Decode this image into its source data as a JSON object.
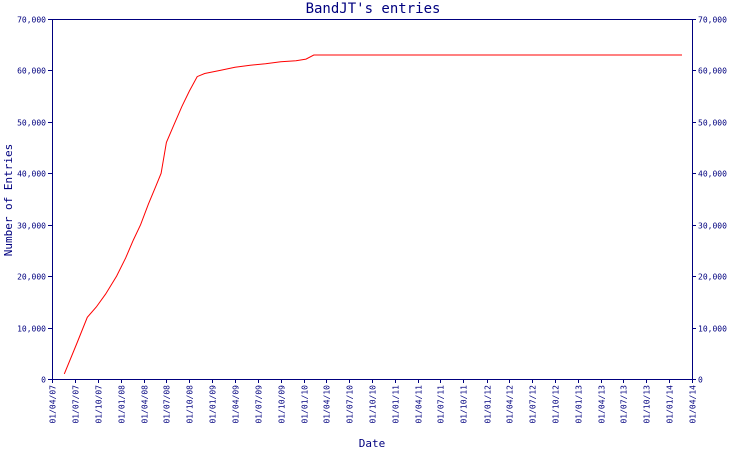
{
  "chart_data": {
    "type": "line",
    "title": "BandJT's entries",
    "xlabel": "Date",
    "ylabel": "Number of Entries",
    "ylim": [
      0,
      70000
    ],
    "grid": false,
    "legend": "none",
    "x_start": "2007-04-01",
    "x_end": "2014-04-01",
    "y_ticks": [
      {
        "value": 0,
        "label": "0"
      },
      {
        "value": 10000,
        "label": "10,000"
      },
      {
        "value": 20000,
        "label": "20,000"
      },
      {
        "value": 30000,
        "label": "30,000"
      },
      {
        "value": 40000,
        "label": "40,000"
      },
      {
        "value": 50000,
        "label": "50,000"
      },
      {
        "value": 60000,
        "label": "60,000"
      },
      {
        "value": 70000,
        "label": "70,000"
      }
    ],
    "x_ticks": [
      {
        "date": "2007-04-01",
        "label": "01/04/07"
      },
      {
        "date": "2007-07-01",
        "label": "01/07/07"
      },
      {
        "date": "2007-10-01",
        "label": "01/10/07"
      },
      {
        "date": "2008-01-01",
        "label": "01/01/08"
      },
      {
        "date": "2008-04-01",
        "label": "01/04/08"
      },
      {
        "date": "2008-07-01",
        "label": "01/07/08"
      },
      {
        "date": "2008-10-01",
        "label": "01/10/08"
      },
      {
        "date": "2009-01-01",
        "label": "01/01/09"
      },
      {
        "date": "2009-04-01",
        "label": "01/04/09"
      },
      {
        "date": "2009-07-01",
        "label": "01/07/09"
      },
      {
        "date": "2009-10-01",
        "label": "01/10/09"
      },
      {
        "date": "2010-01-01",
        "label": "01/01/10"
      },
      {
        "date": "2010-04-01",
        "label": "01/04/10"
      },
      {
        "date": "2010-07-01",
        "label": "01/07/10"
      },
      {
        "date": "2010-10-01",
        "label": "01/10/10"
      },
      {
        "date": "2011-01-01",
        "label": "01/01/11"
      },
      {
        "date": "2011-04-01",
        "label": "01/04/11"
      },
      {
        "date": "2011-07-01",
        "label": "01/07/11"
      },
      {
        "date": "2011-10-01",
        "label": "01/10/11"
      },
      {
        "date": "2012-01-01",
        "label": "01/01/12"
      },
      {
        "date": "2012-04-01",
        "label": "01/04/12"
      },
      {
        "date": "2012-07-01",
        "label": "01/07/12"
      },
      {
        "date": "2012-10-01",
        "label": "01/10/12"
      },
      {
        "date": "2013-01-01",
        "label": "01/01/13"
      },
      {
        "date": "2013-04-01",
        "label": "01/04/13"
      },
      {
        "date": "2013-07-01",
        "label": "01/07/13"
      },
      {
        "date": "2013-10-01",
        "label": "01/10/13"
      },
      {
        "date": "2014-01-01",
        "label": "01/01/14"
      },
      {
        "date": "2014-04-01",
        "label": "01/04/14"
      }
    ],
    "series": [
      {
        "color": "#ff0000",
        "points": [
          {
            "x": "2007-05-20",
            "y": 1000
          },
          {
            "x": "2007-07-10",
            "y": 7000
          },
          {
            "x": "2007-08-20",
            "y": 12000
          },
          {
            "x": "2007-09-25",
            "y": 14000
          },
          {
            "x": "2007-11-01",
            "y": 16500
          },
          {
            "x": "2007-12-15",
            "y": 20000
          },
          {
            "x": "2008-01-20",
            "y": 23500
          },
          {
            "x": "2008-02-20",
            "y": 27000
          },
          {
            "x": "2008-03-20",
            "y": 30000
          },
          {
            "x": "2008-04-20",
            "y": 34000
          },
          {
            "x": "2008-05-20",
            "y": 37500
          },
          {
            "x": "2008-06-10",
            "y": 40000
          },
          {
            "x": "2008-07-01",
            "y": 46000
          },
          {
            "x": "2008-08-01",
            "y": 49500
          },
          {
            "x": "2008-09-01",
            "y": 53000
          },
          {
            "x": "2008-10-01",
            "y": 56000
          },
          {
            "x": "2008-11-01",
            "y": 58800
          },
          {
            "x": "2008-12-01",
            "y": 59400
          },
          {
            "x": "2009-02-01",
            "y": 60000
          },
          {
            "x": "2009-04-01",
            "y": 60600
          },
          {
            "x": "2009-06-01",
            "y": 61000
          },
          {
            "x": "2009-08-01",
            "y": 61300
          },
          {
            "x": "2009-10-01",
            "y": 61700
          },
          {
            "x": "2009-12-01",
            "y": 61900
          },
          {
            "x": "2010-01-10",
            "y": 62200
          },
          {
            "x": "2010-02-10",
            "y": 63000
          },
          {
            "x": "2010-06-01",
            "y": 63000
          },
          {
            "x": "2011-06-01",
            "y": 63000
          },
          {
            "x": "2012-06-01",
            "y": 63000
          },
          {
            "x": "2013-06-01",
            "y": 63000
          },
          {
            "x": "2014-02-20",
            "y": 63000
          }
        ]
      }
    ]
  }
}
